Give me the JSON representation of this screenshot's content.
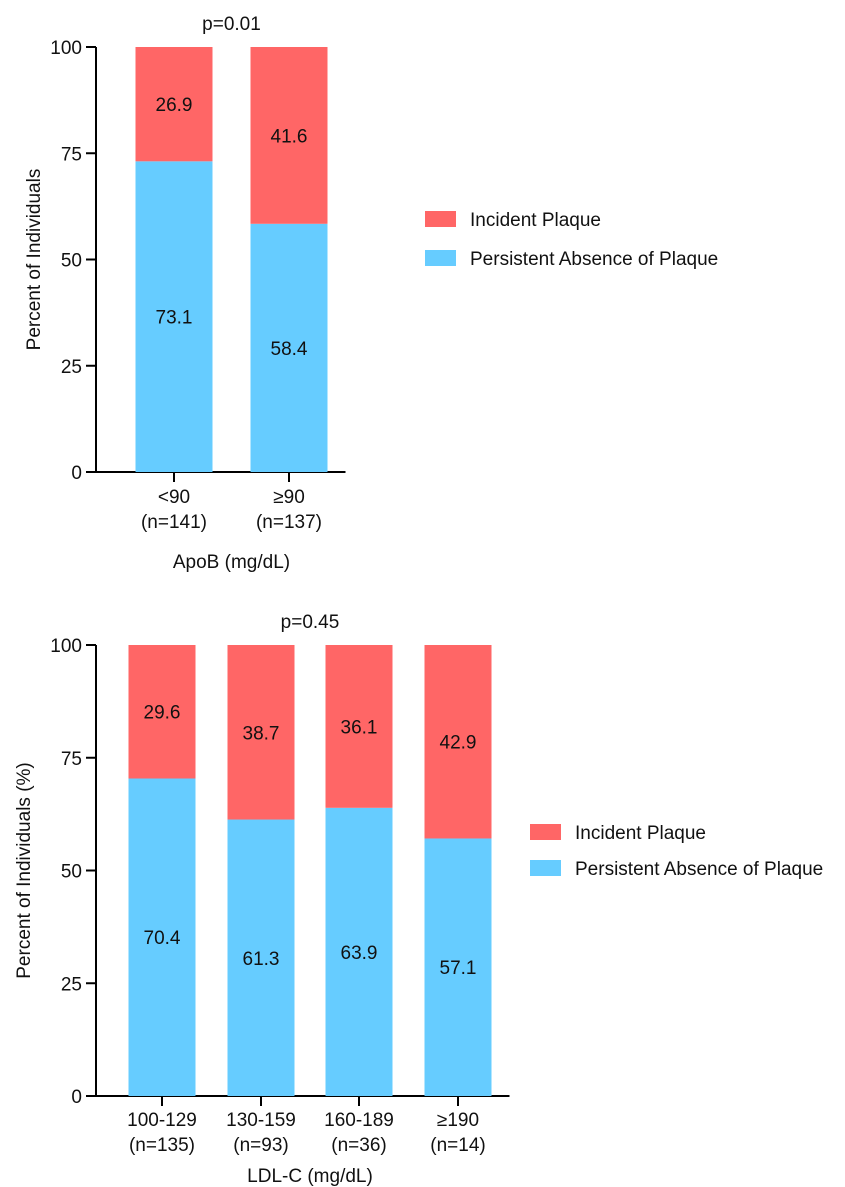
{
  "chart_data": [
    {
      "type": "bar",
      "stacked": true,
      "p_value": "p=0.01",
      "title": "",
      "xlabel": "ApoB (mg/dL)",
      "ylabel": "Percent of Individuals",
      "ylim": [
        0,
        100
      ],
      "yticks": [
        "0",
        "25",
        "50",
        "75",
        "100"
      ],
      "categories": [
        {
          "line1": "<90",
          "line2": "(n=141)"
        },
        {
          "line1": "≥90",
          "line2": "(n=137)"
        }
      ],
      "series": [
        {
          "name": "Persistent Absence of Plaque",
          "color": "#66CCFF",
          "values": [
            73.1,
            58.4
          ],
          "labels": [
            "73.1",
            "58.4"
          ]
        },
        {
          "name": "Incident Plaque",
          "color": "#FF6666",
          "values": [
            26.9,
            41.6
          ],
          "labels": [
            "26.9",
            "41.6"
          ]
        }
      ],
      "legend": [
        "Incident Plaque",
        "Persistent Absence of Plaque"
      ],
      "legend_placement": "right",
      "grid": false
    },
    {
      "type": "bar",
      "stacked": true,
      "p_value": "p=0.45",
      "title": "",
      "xlabel": "LDL-C (mg/dL)",
      "ylabel": "Percent of Individuals (%)",
      "ylim": [
        0,
        100
      ],
      "yticks": [
        "0",
        "25",
        "50",
        "75",
        "100"
      ],
      "categories": [
        {
          "line1": "100-129",
          "line2": "(n=135)"
        },
        {
          "line1": "130-159",
          "line2": "(n=93)"
        },
        {
          "line1": "160-189",
          "line2": "(n=36)"
        },
        {
          "line1": "≥190",
          "line2": "(n=14)"
        }
      ],
      "series": [
        {
          "name": "Persistent Absence of Plaque",
          "color": "#66CCFF",
          "values": [
            70.4,
            61.3,
            63.9,
            57.1
          ],
          "labels": [
            "70.4",
            "61.3",
            "63.9",
            "57.1"
          ]
        },
        {
          "name": "Incident Plaque",
          "color": "#FF6666",
          "values": [
            29.6,
            38.7,
            36.1,
            42.9
          ],
          "labels": [
            "29.6",
            "38.7",
            "36.1",
            "42.9"
          ]
        }
      ],
      "legend": [
        "Incident Plaque",
        "Persistent Absence of Plaque"
      ],
      "legend_placement": "right",
      "grid": false
    }
  ]
}
